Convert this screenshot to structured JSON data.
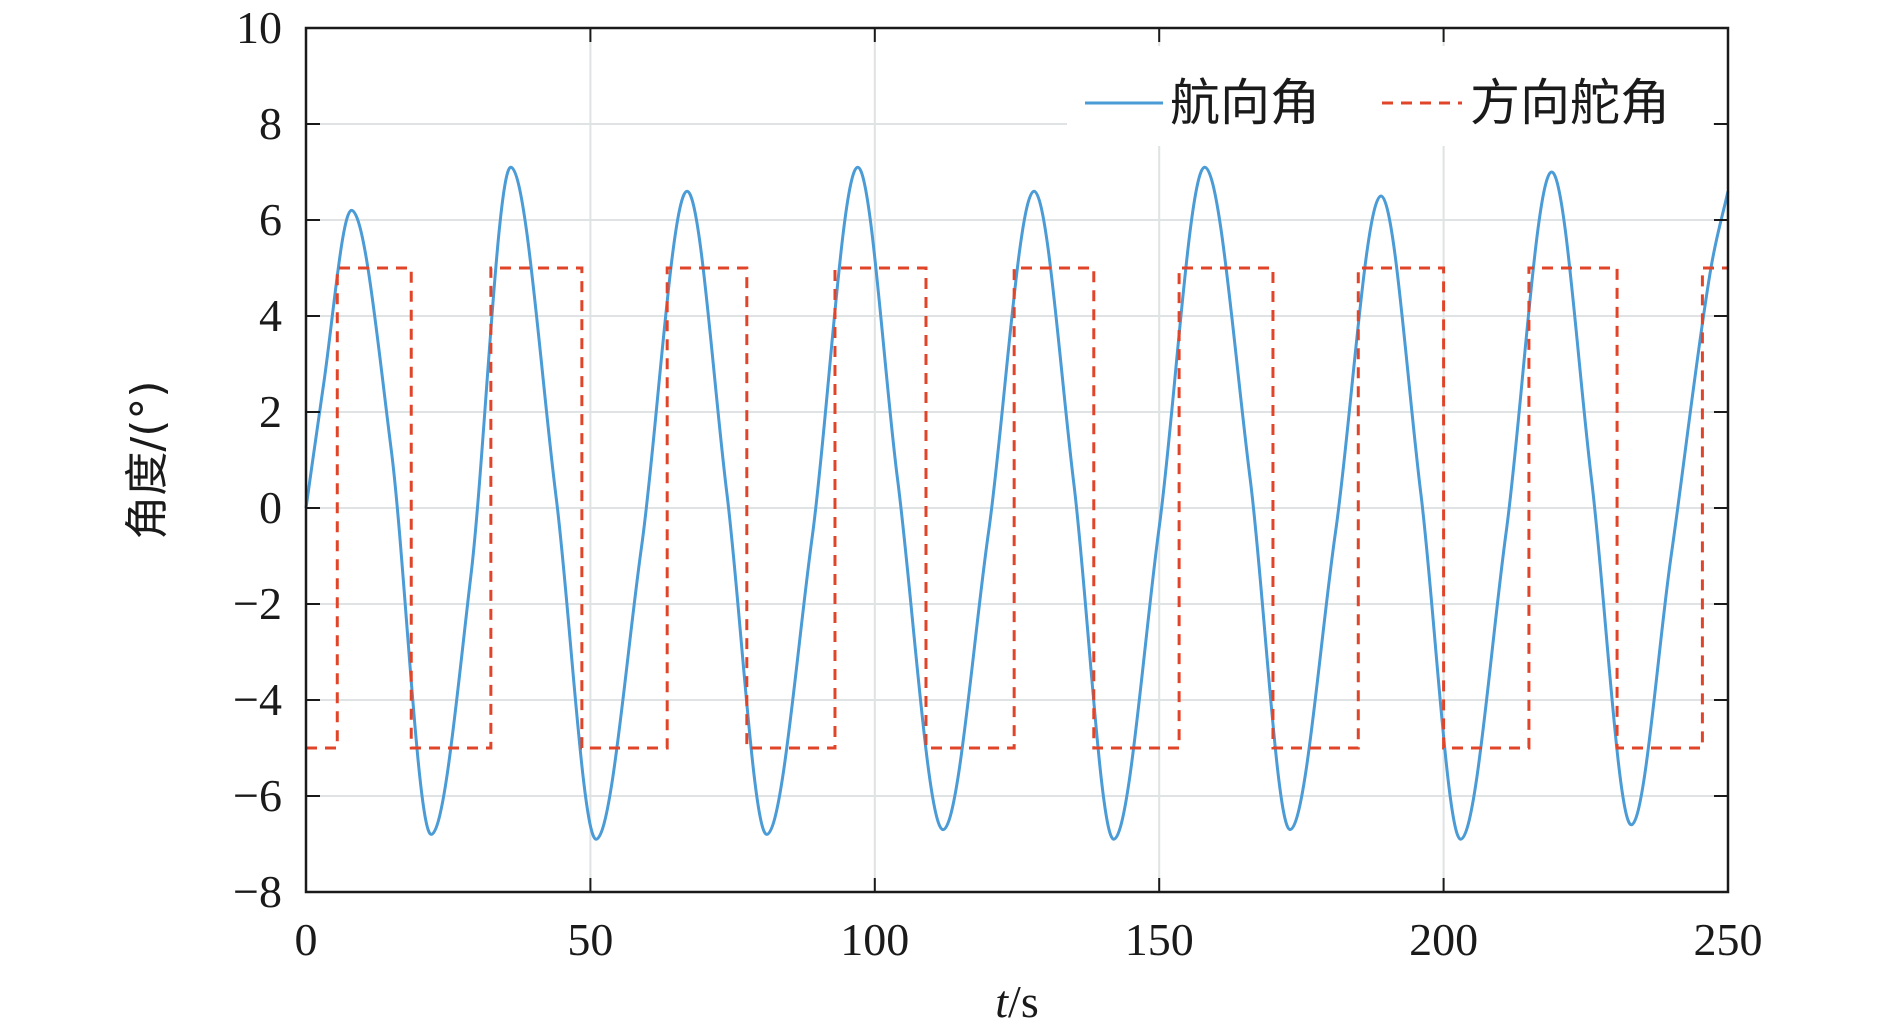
{
  "chart_data": {
    "type": "line",
    "xlabel_var": "t",
    "xlabel_unit": "/s",
    "ylabel": "角度/(°)",
    "xlim": [
      0,
      250
    ],
    "ylim": [
      -8,
      10
    ],
    "xticks": [
      0,
      50,
      100,
      150,
      200,
      250
    ],
    "yticks": [
      10,
      8,
      6,
      4,
      2,
      0,
      -2,
      -4,
      -6,
      -8
    ],
    "ytick_labels": [
      "10",
      "8",
      "6",
      "4",
      "2",
      "0",
      "−2",
      "−4",
      "−6",
      "−8"
    ],
    "grid": true,
    "legend_position": "top-right",
    "series": [
      {
        "name": "航向角",
        "style": "solid",
        "color": "#4a9bd6",
        "x": [
          0,
          3,
          8,
          15,
          22,
          29,
          36,
          44,
          51,
          59,
          67,
          74,
          81,
          89,
          97,
          104,
          112,
          120,
          128,
          135,
          142,
          150,
          158,
          166,
          173,
          181,
          189,
          196,
          203,
          211,
          219,
          226,
          233,
          240,
          247,
          250
        ],
        "y": [
          0,
          2.5,
          6.2,
          1.2,
          -6.8,
          -1.4,
          7.1,
          0.2,
          -6.9,
          -0.8,
          6.6,
          0.3,
          -6.8,
          -0.6,
          7.1,
          0.6,
          -6.7,
          -0.5,
          6.6,
          0.5,
          -6.9,
          -0.4,
          7.1,
          0.6,
          -6.7,
          -0.5,
          6.5,
          0.3,
          -6.9,
          -0.5,
          7.0,
          0.6,
          -6.6,
          -1.0,
          5.0,
          6.6
        ]
      },
      {
        "name": "方向舵角",
        "style": "dashed",
        "color": "#e0452a",
        "x": [
          0,
          5.5,
          5.5,
          18.5,
          18.5,
          32.5,
          32.5,
          48.5,
          48.5,
          63.5,
          63.5,
          77.5,
          77.5,
          93,
          93,
          109,
          109,
          124.5,
          124.5,
          138.5,
          138.5,
          153.5,
          153.5,
          170,
          170,
          185,
          185,
          200,
          200,
          215,
          215,
          230.5,
          230.5,
          245.5,
          245.5,
          250
        ],
        "y": [
          -5,
          -5,
          5,
          5,
          -5,
          -5,
          5,
          5,
          -5,
          -5,
          5,
          5,
          -5,
          -5,
          5,
          5,
          -5,
          -5,
          5,
          5,
          -5,
          -5,
          5,
          5,
          -5,
          -5,
          5,
          5,
          -5,
          -5,
          5,
          5,
          -5,
          -5,
          5,
          5
        ]
      }
    ]
  }
}
